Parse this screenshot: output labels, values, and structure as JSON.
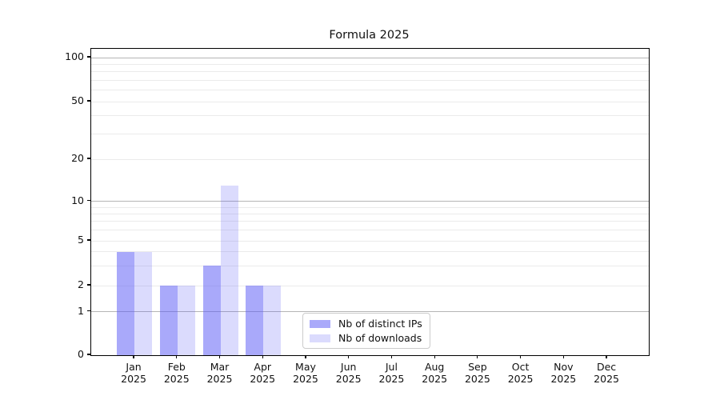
{
  "title": "Formula 2025",
  "legend": {
    "items": [
      {
        "label": "Nb of distinct IPs",
        "color": "rgba(90,90,245,0.52)"
      },
      {
        "label": "Nb of downloads",
        "color": "rgba(90,90,245,0.22)"
      }
    ]
  },
  "chart_data": {
    "type": "bar",
    "title": "Formula 2025",
    "categories": [
      "Jan 2025",
      "Feb 2025",
      "Mar 2025",
      "Apr 2025",
      "May 2025",
      "Jun 2025",
      "Jul 2025",
      "Aug 2025",
      "Sep 2025",
      "Oct 2025",
      "Nov 2025",
      "Dec 2025"
    ],
    "series": [
      {
        "name": "Nb of distinct IPs",
        "color": "rgba(90,90,245,0.52)",
        "values": [
          4,
          2,
          3,
          2,
          0,
          0,
          0,
          0,
          0,
          0,
          0,
          0
        ]
      },
      {
        "name": "Nb of downloads",
        "color": "rgba(90,90,245,0.22)",
        "values": [
          4,
          2,
          13,
          2,
          0,
          0,
          0,
          0,
          0,
          0,
          0,
          0
        ]
      }
    ],
    "xlabel": "",
    "ylabel": "",
    "yscale": "log-like (0, then logarithmic decades)",
    "y_ticks": [
      0,
      1,
      2,
      5,
      10,
      20,
      50,
      100
    ],
    "y_major_gridlines": [
      1,
      10,
      100
    ],
    "y_minor_gridlines": [
      2,
      3,
      4,
      5,
      6,
      7,
      8,
      9,
      20,
      30,
      40,
      50,
      60,
      70,
      80,
      90
    ],
    "ylim": [
      0,
      115
    ],
    "grid": "horizontal only",
    "legend_position": "inside plot, lower middle"
  }
}
